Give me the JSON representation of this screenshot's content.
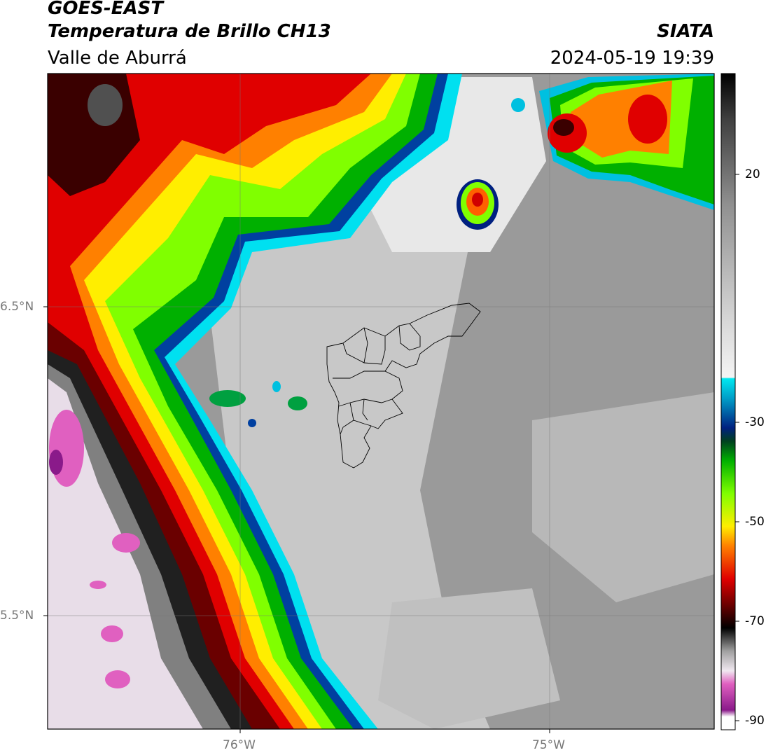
{
  "header": {
    "title": "GOES-EAST",
    "subtitle": "Temperatura de Brillo CH13",
    "region": "Valle de Aburrá",
    "brand": "SIATA",
    "datetime": "2024-05-19 19:39"
  },
  "axes": {
    "lat_labels": [
      "6.5°N",
      "5.5°N"
    ],
    "lon_labels": [
      "76°W",
      "75°W"
    ]
  },
  "colorbar": {
    "ticks": [
      "20",
      "-30",
      "-50",
      "-70",
      "-90"
    ],
    "colors": [
      "#ffffff",
      "#8a1a8a",
      "#e060c0",
      "#eeeeee",
      "#202020",
      "#000000",
      "#6a0000",
      "#d00000",
      "#ff6000",
      "#ffb000",
      "#ffee00",
      "#a0ff00",
      "#00c000",
      "#004000",
      "#002080",
      "#0080c0",
      "#00e0f0",
      "#f0f0f0",
      "#c8c8c8",
      "#888888",
      "#444444",
      "#000000"
    ]
  },
  "legend_colors": {
    "warm_land": "#9a9a9a",
    "cold_cloud_top": "#e060c0"
  }
}
